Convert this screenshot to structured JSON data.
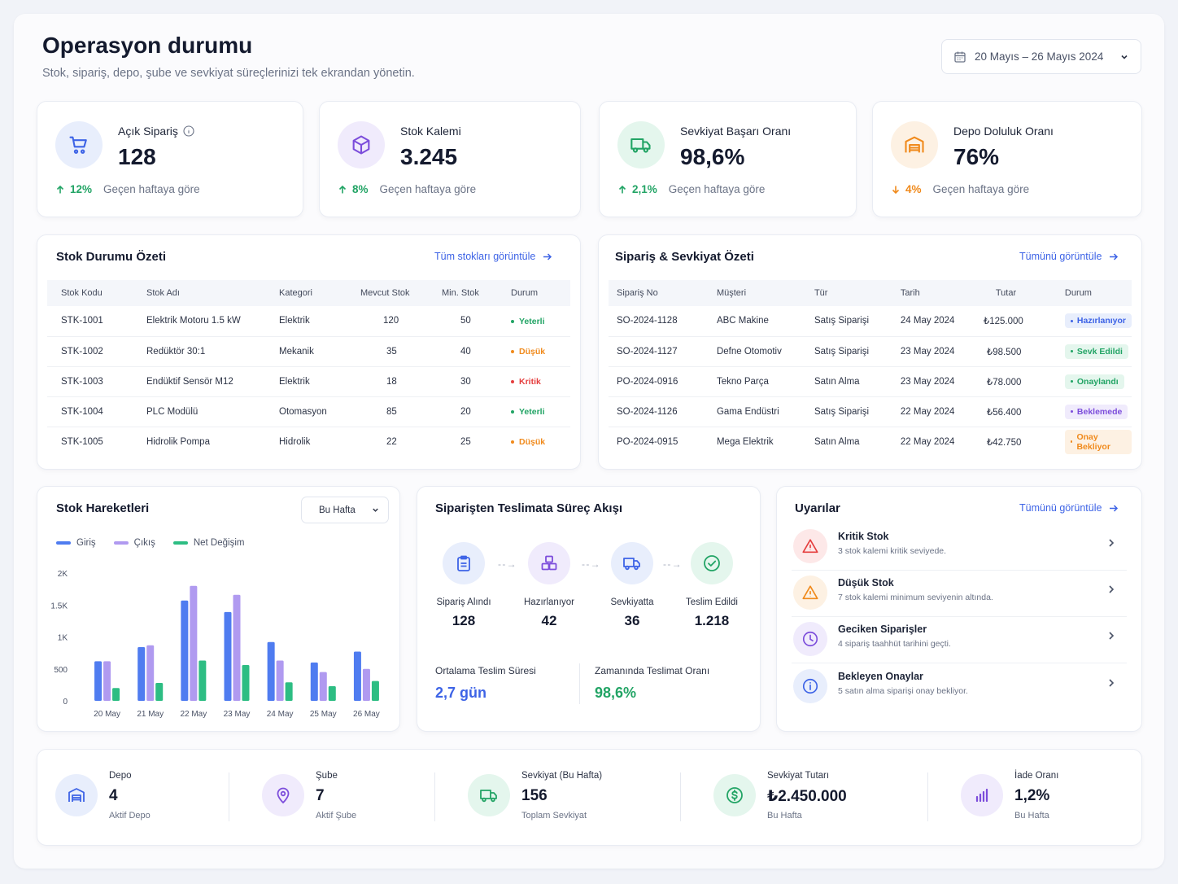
{
  "header": {
    "title": "Operasyon durumu",
    "subtitle": "Stok, sipariş, depo, şube ve sevkiyat süreçlerinizi tek ekrandan yönetin.",
    "date_range": "20 Mayıs – 26 Mayıs 2024"
  },
  "kpis": [
    {
      "label": "Açık Sipariş",
      "value": "128",
      "change": "12%",
      "trend": "up",
      "note": "Geçen haftaya göre",
      "icon": "cart-icon",
      "color": "#3d63e6"
    },
    {
      "label": "Stok Kalemi",
      "value": "3.245",
      "change": "8%",
      "trend": "up",
      "note": "Geçen haftaya göre",
      "icon": "box-icon",
      "color": "#7c4ddb"
    },
    {
      "label": "Sevkiyat Başarı Oranı",
      "value": "98,6%",
      "change": "2,1%",
      "trend": "up",
      "note": "Geçen haftaya göre",
      "icon": "truck-icon",
      "color": "#22a465"
    },
    {
      "label": "Depo Doluluk Oranı",
      "value": "76%",
      "change": "4%",
      "trend": "down",
      "note": "Geçen haftaya göre",
      "icon": "warehouse-icon",
      "color": "#f08a1c"
    }
  ],
  "stock_summary": {
    "title": "Stok Durumu Özeti",
    "link": "Tüm stokları görüntüle",
    "columns": [
      "Stok Kodu",
      "Stok Adı",
      "Kategori",
      "Mevcut Stok",
      "Min. Stok",
      "Durum"
    ],
    "rows": [
      [
        "STK-1001",
        "Elektrik Motoru 1.5 kW",
        "Elektrik",
        "120",
        "50",
        "Yeterli"
      ],
      [
        "STK-1002",
        "Redüktör 30:1",
        "Mekanik",
        "35",
        "40",
        "Düşük"
      ],
      [
        "STK-1003",
        "Endüktif Sensör M12",
        "Elektrik",
        "18",
        "30",
        "Kritik"
      ],
      [
        "STK-1004",
        "PLC Modülü",
        "Otomasyon",
        "85",
        "20",
        "Yeterli"
      ],
      [
        "STK-1005",
        "Hidrolik Pompa",
        "Hidrolik",
        "22",
        "25",
        "Düşük"
      ]
    ]
  },
  "order_summary": {
    "title": "Sipariş & Sevkiyat Özeti",
    "link": "Tümünü görüntüle",
    "columns": [
      "Sipariş No",
      "Müşteri",
      "Tür",
      "Tarih",
      "Tutar",
      "Durum"
    ],
    "rows": [
      [
        "SO-2024-1128",
        "ABC Makine",
        "Satış Siparişi",
        "24 May 2024",
        "₺125.000",
        "Hazırlanıyor"
      ],
      [
        "SO-2024-1127",
        "Defne Otomotiv",
        "Satış Siparişi",
        "23 May 2024",
        "₺98.500",
        "Sevk Edildi"
      ],
      [
        "PO-2024-0916",
        "Tekno Parça",
        "Satın Alma",
        "23 May 2024",
        "₺78.000",
        "Onaylandı"
      ],
      [
        "SO-2024-1126",
        "Gama Endüstri",
        "Satış Siparişi",
        "22 May 2024",
        "₺56.400",
        "Beklemede"
      ],
      [
        "PO-2024-0915",
        "Mega Elektrik",
        "Satın Alma",
        "22 May 2024",
        "₺42.750",
        "Onay Bekliyor"
      ]
    ]
  },
  "stock_movements": {
    "title": "Stok Hareketleri",
    "period": "Bu Hafta"
  },
  "chart_data": {
    "type": "bar",
    "categories": [
      "20 May",
      "21 May",
      "22 May",
      "23 May",
      "24 May",
      "25 May",
      "26 May"
    ],
    "series": [
      {
        "name": "Giriş",
        "color": "#4f7cf0",
        "values": [
          620,
          840,
          1570,
          1390,
          920,
          600,
          770
        ]
      },
      {
        "name": "Çıkış",
        "color": "#b09af0",
        "values": [
          620,
          870,
          1800,
          1660,
          630,
          450,
          500
        ]
      },
      {
        "name": "Net Değişim",
        "color": "#2dbd83",
        "values": [
          200,
          280,
          630,
          560,
          290,
          230,
          310
        ]
      }
    ],
    "yticks": [
      "0",
      "500",
      "1K",
      "1.5K",
      "2K"
    ],
    "ylim": [
      0,
      2000
    ]
  },
  "process_flow": {
    "title": "Siparişten Teslimata Süreç Akışı",
    "steps": [
      {
        "label": "Sipariş Alındı",
        "value": "128",
        "icon": "clipboard-icon",
        "color": "#3d63e6",
        "bg": "#e8eefc"
      },
      {
        "label": "Hazırlanıyor",
        "value": "42",
        "icon": "boxes-icon",
        "color": "#7c4ddb",
        "bg": "#f0ebfc"
      },
      {
        "label": "Sevkiyatta",
        "value": "36",
        "icon": "truck-icon",
        "color": "#3d63e6",
        "bg": "#e8eefc"
      },
      {
        "label": "Teslim Edildi",
        "value": "1.218",
        "icon": "check-circle-icon",
        "color": "#22a465",
        "bg": "#e4f6ed"
      }
    ],
    "avg_label": "Ortalama Teslim Süresi",
    "avg_value": "2,7 gün",
    "ontime_label": "Zamanında Teslimat Oranı",
    "ontime_value": "98,6%"
  },
  "alerts": {
    "title": "Uyarılar",
    "link": "Tümünü görüntüle",
    "items": [
      {
        "title": "Kritik Stok",
        "desc": "3 stok kalemi kritik seviyede.",
        "icon": "warning-icon",
        "color": "#e53e3e",
        "bg": "#fde8e8"
      },
      {
        "title": "Düşük Stok",
        "desc": "7 stok kalemi minimum seviyenin altında.",
        "icon": "warning-icon",
        "color": "#f08a1c",
        "bg": "#fdf1e3"
      },
      {
        "title": "Geciken Siparişler",
        "desc": "4 sipariş taahhüt tarihini geçti.",
        "icon": "clock-icon",
        "color": "#7c4ddb",
        "bg": "#f0ebfc"
      },
      {
        "title": "Bekleyen Onaylar",
        "desc": "5 satın alma siparişi onay bekliyor.",
        "icon": "info-icon",
        "color": "#3d63e6",
        "bg": "#e8eefc"
      }
    ]
  },
  "bottom_stats": [
    {
      "label": "Depo",
      "value": "4",
      "sub": "Aktif Depo",
      "icon": "warehouse-icon",
      "color": "#3d63e6",
      "bg": "#e8eefc"
    },
    {
      "label": "Şube",
      "value": "7",
      "sub": "Aktif Şube",
      "icon": "location-pin-icon",
      "color": "#7c4ddb",
      "bg": "#f0ebfc"
    },
    {
      "label": "Sevkiyat (Bu Hafta)",
      "value": "156",
      "sub": "Toplam Sevkiyat",
      "icon": "truck-icon",
      "color": "#22a465",
      "bg": "#e4f6ed"
    },
    {
      "label": "Sevkiyat Tutarı",
      "value": "₺2.450.000",
      "sub": "Bu Hafta",
      "icon": "dollar-circle-icon",
      "color": "#22a465",
      "bg": "#e4f6ed"
    },
    {
      "label": "İade Oranı",
      "value": "1,2%",
      "sub": "Bu Hafta",
      "icon": "bar-chart-icon",
      "color": "#7c4ddb",
      "bg": "#f0ebfc"
    }
  ]
}
